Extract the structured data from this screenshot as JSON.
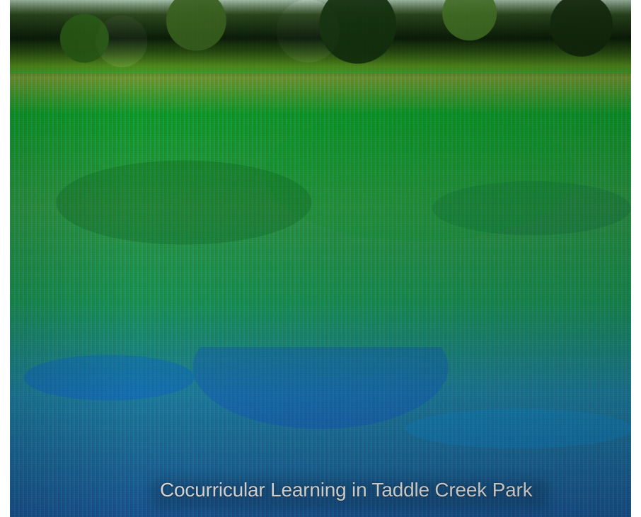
{
  "caption": "Cocurricular Learning in Taddle Creek Park"
}
